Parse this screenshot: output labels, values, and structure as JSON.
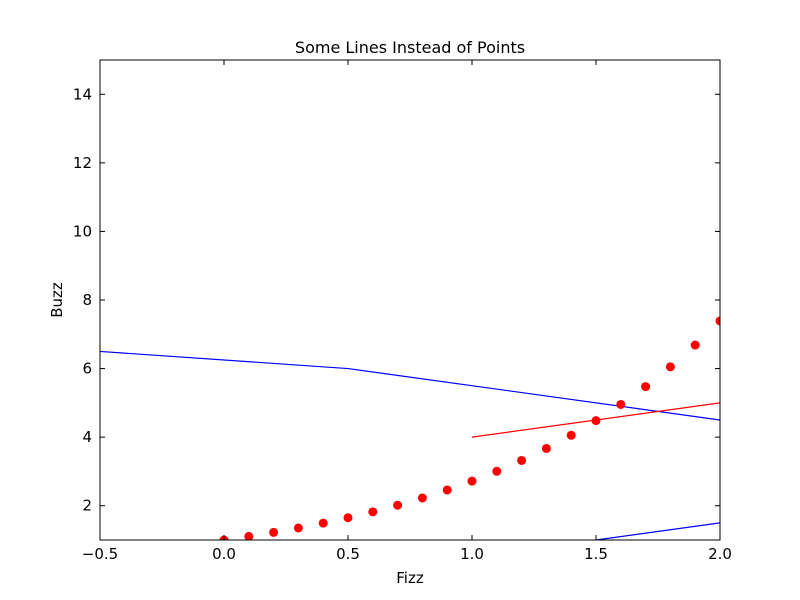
{
  "chart_data": {
    "type": "line",
    "title": "Some Lines Instead of Points",
    "xlabel": "Fizz",
    "ylabel": "Buzz",
    "xlim": [
      -0.5,
      2.0
    ],
    "ylim": [
      1.0,
      15.0
    ],
    "xticks": [
      -0.5,
      0.0,
      0.5,
      1.0,
      1.5,
      2.0
    ],
    "xtick_labels": [
      "−0.5",
      "0.0",
      "0.5",
      "1.0",
      "1.5",
      "2.0"
    ],
    "yticks": [
      2,
      4,
      6,
      8,
      10,
      12,
      14
    ],
    "ytick_labels": [
      "2",
      "4",
      "6",
      "8",
      "10",
      "12",
      "14"
    ],
    "grid": false,
    "series": [
      {
        "name": "blue-line-upper",
        "kind": "line",
        "color": "#0000ff",
        "x": [
          -0.5,
          0.5,
          2.0
        ],
        "y": [
          6.5,
          6.0,
          4.5
        ]
      },
      {
        "name": "red-line",
        "kind": "line",
        "color": "#ff0000",
        "x": [
          1.0,
          2.0
        ],
        "y": [
          4.0,
          5.0
        ]
      },
      {
        "name": "blue-line-lower",
        "kind": "line",
        "color": "#0000ff",
        "x": [
          1.5,
          2.0
        ],
        "y": [
          1.0,
          1.5
        ]
      },
      {
        "name": "red-dots",
        "kind": "scatter",
        "color": "#ff0000",
        "x": [
          0.0,
          0.1,
          0.2,
          0.3,
          0.4,
          0.5,
          0.6,
          0.7,
          0.8,
          0.9,
          1.0,
          1.1,
          1.2,
          1.3,
          1.4,
          1.5,
          1.6,
          1.7,
          1.8,
          1.9,
          2.0
        ],
        "y": [
          1.0,
          1.105,
          1.221,
          1.35,
          1.492,
          1.649,
          1.822,
          2.014,
          2.226,
          2.46,
          2.718,
          3.004,
          3.32,
          3.669,
          4.055,
          4.482,
          4.953,
          5.474,
          6.05,
          6.686,
          7.389
        ]
      }
    ]
  }
}
